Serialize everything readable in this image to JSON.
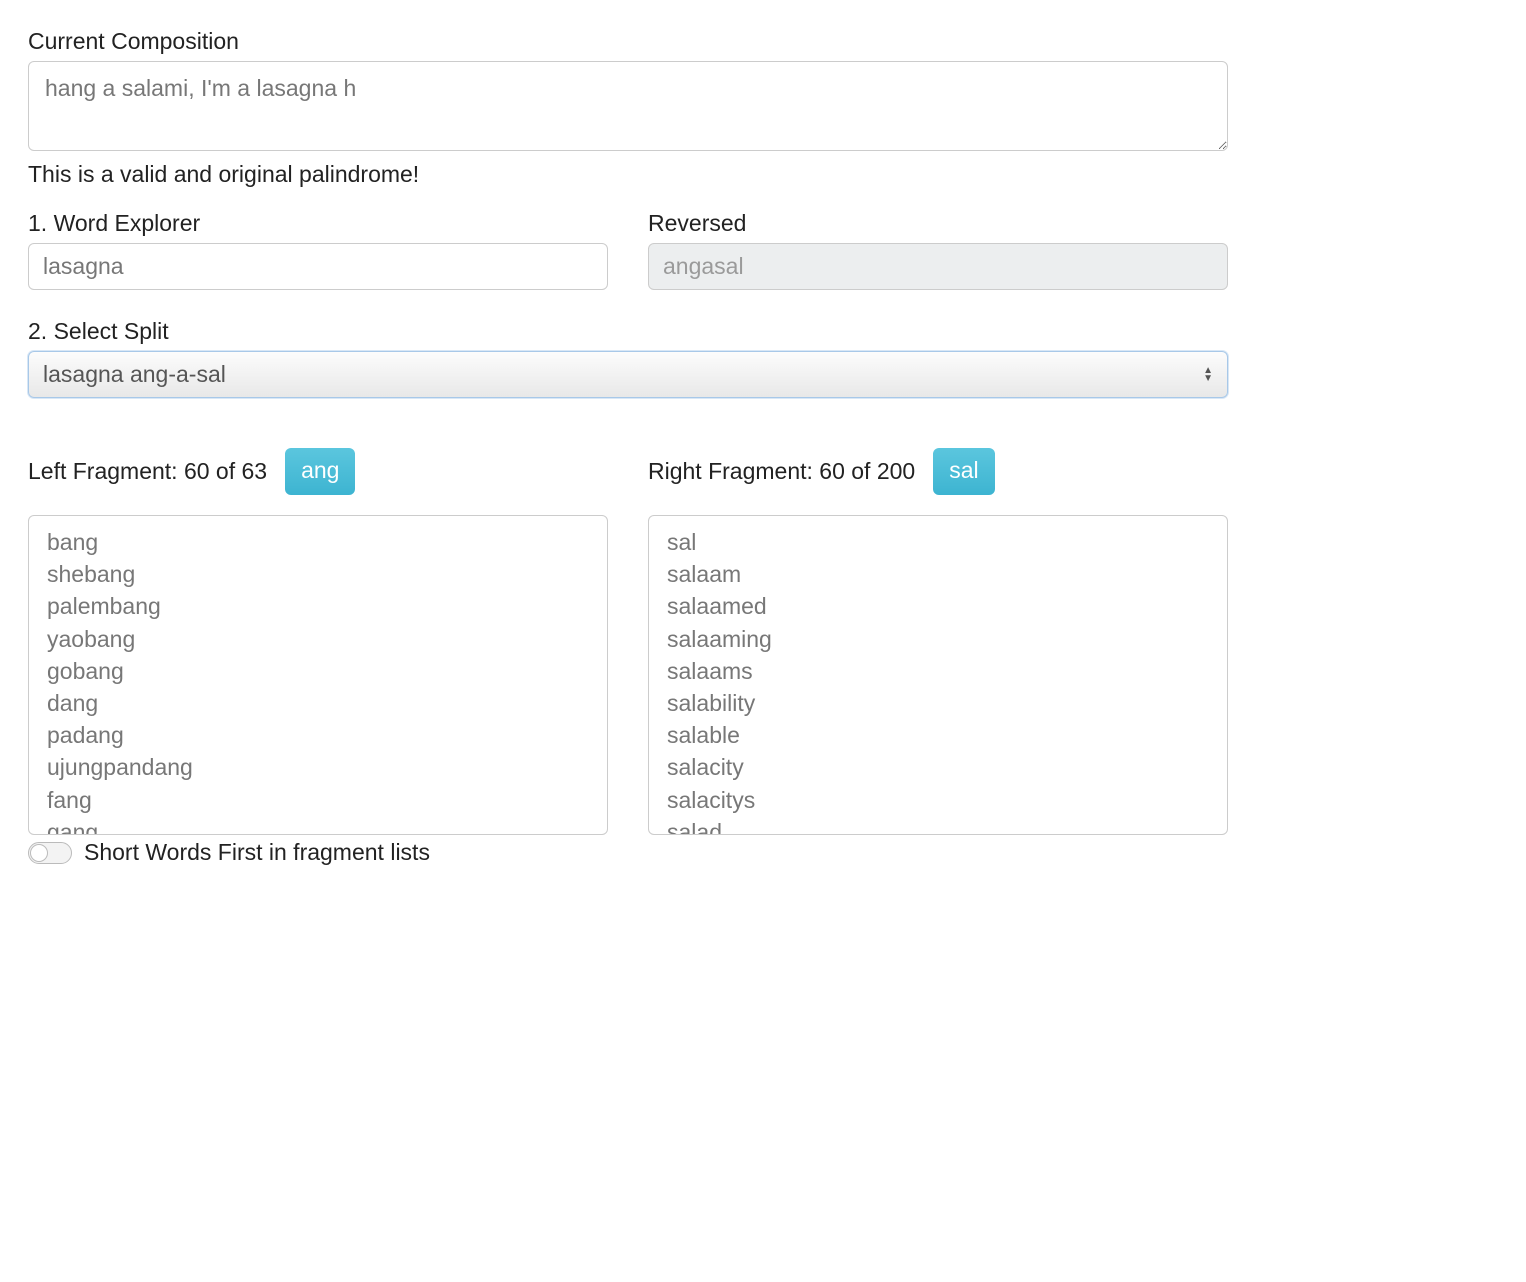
{
  "composition": {
    "label": "Current Composition",
    "value": "hang a salami, I'm a lasagna h",
    "validity_message": "This is a valid and original palindrome!"
  },
  "word_explorer": {
    "label": "1. Word Explorer",
    "value": "lasagna",
    "reversed_label": "Reversed",
    "reversed_value": "angasal"
  },
  "split": {
    "label": "2. Select Split",
    "selected": "lasagna ang-a-sal"
  },
  "fragments": {
    "left": {
      "label": "Left Fragment: 60 of 63",
      "pill": "ang",
      "items": [
        "bang",
        "shebang",
        "palembang",
        "yaobang",
        "gobang",
        "dang",
        "padang",
        "ujungpandang",
        "fang",
        "gang"
      ]
    },
    "right": {
      "label": "Right Fragment: 60 of 200",
      "pill": "sal",
      "items": [
        "sal",
        "salaam",
        "salaamed",
        "salaaming",
        "salaams",
        "salability",
        "salable",
        "salacity",
        "salacitys",
        "salad"
      ]
    }
  },
  "toggle": {
    "label": "Short Words First in fragment lists",
    "on": false
  },
  "style": {
    "accent_color": "#4cbdd7",
    "text_color": "#2c2c2c",
    "muted_text": "#777777",
    "border_color": "#cccccc",
    "disabled_bg": "#eceeef",
    "select_border": "#a8c8e8",
    "background": "#ffffff",
    "font_size_base": 23
  }
}
